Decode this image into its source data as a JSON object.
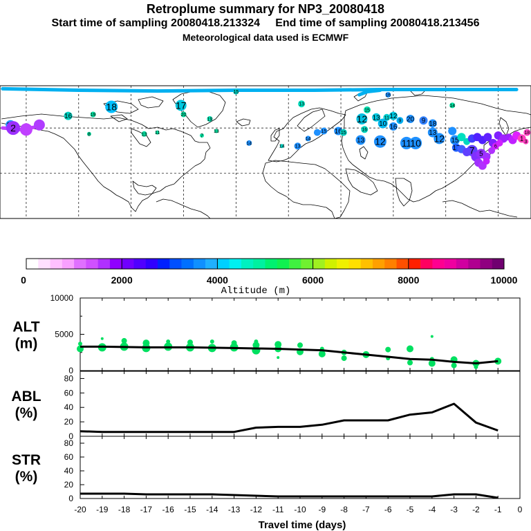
{
  "header": {
    "title": "Retroplume summary for NP3_20080418",
    "sampling_line": "Start time of sampling 20080418.213324     End time of sampling 20080418.213456",
    "met_line": "Meteorological data used is ECMWF"
  },
  "map": {
    "markers": [
      {
        "lon": -172,
        "lat": 62,
        "label": "20",
        "color": "#1e90ff",
        "r": 7
      },
      {
        "lon": -170,
        "lat": 60,
        "label": "2",
        "color": "#9b30ff",
        "r": 10
      },
      {
        "lon": -160,
        "lat": 59,
        "label": "",
        "color": "#c040ff",
        "r": 9
      },
      {
        "lon": -150,
        "lat": 62,
        "label": "",
        "color": "#b03cff",
        "r": 8
      },
      {
        "lon": -128,
        "lat": 68,
        "label": "16",
        "color": "#00d0c0",
        "r": 6
      },
      {
        "lon": -95,
        "lat": 74,
        "label": "18",
        "color": "#00bfff",
        "r": 9
      },
      {
        "lon": -109,
        "lat": 69,
        "label": "19",
        "color": "#00e0a0",
        "r": 4
      },
      {
        "lon": -42,
        "lat": 75,
        "label": "17",
        "color": "#00c8e0",
        "r": 8
      },
      {
        "lon": -40,
        "lat": 69,
        "label": "20",
        "color": "#00e0a0",
        "r": 4
      },
      {
        "lon": -20,
        "lat": 66,
        "label": "19",
        "color": "#00e0b0",
        "r": 4
      },
      {
        "lon": -70,
        "lat": 56,
        "label": "13",
        "color": "#00e0a0",
        "r": 4
      },
      {
        "lon": -112,
        "lat": 56,
        "label": "8",
        "color": "#00e0a0",
        "r": 3
      },
      {
        "lon": 50,
        "lat": 76,
        "label": "13",
        "color": "#00e0c0",
        "r": 5
      },
      {
        "lon": 100,
        "lat": 72,
        "label": "15",
        "color": "#00e0b0",
        "r": 5
      },
      {
        "lon": 96,
        "lat": 66,
        "label": "12",
        "color": "#00c0e0",
        "r": 8
      },
      {
        "lon": 107,
        "lat": 67,
        "label": "13",
        "color": "#00c8e0",
        "r": 6
      },
      {
        "lon": 115,
        "lat": 67,
        "label": "11",
        "color": "#00d0d0",
        "r": 5
      },
      {
        "lon": 120,
        "lat": 68,
        "label": "12",
        "color": "#00c8e0",
        "r": 6
      },
      {
        "lon": 125,
        "lat": 65,
        "label": "9",
        "color": "#00aef0",
        "r": 5
      },
      {
        "lon": 133,
        "lat": 66,
        "label": "20",
        "color": "#1e90ff",
        "r": 6
      },
      {
        "lon": 143,
        "lat": 65,
        "label": "9",
        "color": "#3080ff",
        "r": 6
      },
      {
        "lon": 150,
        "lat": 63,
        "label": "18",
        "color": "#1e90ff",
        "r": 6
      },
      {
        "lon": 112,
        "lat": 63,
        "label": "10",
        "color": "#00b8f0",
        "r": 7
      },
      {
        "lon": 120,
        "lat": 61,
        "label": "16",
        "color": "#1e90ff",
        "r": 6
      },
      {
        "lon": 98,
        "lat": 59,
        "label": "16",
        "color": "#00d8c0",
        "r": 5
      },
      {
        "lon": 67,
        "lat": 58,
        "label": "15",
        "color": "#1e90ff",
        "r": 5
      },
      {
        "lon": 78,
        "lat": 58,
        "label": "16",
        "color": "#1e90ff",
        "r": 6
      },
      {
        "lon": 82,
        "lat": 57,
        "label": "15",
        "color": "#00d0c0",
        "r": 5
      },
      {
        "lon": 62,
        "lat": 57,
        "label": "",
        "color": "#1e90ff",
        "r": 5
      },
      {
        "lon": 95,
        "lat": 52,
        "label": "13",
        "color": "#1e90ff",
        "r": 7
      },
      {
        "lon": 110,
        "lat": 51,
        "label": "12",
        "color": "#1e90ff",
        "r": 9
      },
      {
        "lon": 130,
        "lat": 50,
        "label": "11",
        "color": "#1e90ff",
        "r": 9
      },
      {
        "lon": 137,
        "lat": 50,
        "label": "10",
        "color": "#1e90ff",
        "r": 9
      },
      {
        "lon": 150,
        "lat": 57,
        "label": "13",
        "color": "#1e90ff",
        "r": 7
      },
      {
        "lon": 155,
        "lat": 53,
        "label": "12",
        "color": "#1e90ff",
        "r": 8
      },
      {
        "lon": 165,
        "lat": 58,
        "label": "",
        "color": "#1e90ff",
        "r": 6
      },
      {
        "lon": 167,
        "lat": 52,
        "label": "15",
        "color": "#1e90ff",
        "r": 7
      },
      {
        "lon": 168,
        "lat": 47,
        "label": "17",
        "color": "#2060ff",
        "r": 6
      },
      {
        "lon": 172,
        "lat": 54,
        "label": "",
        "color": "#00e0c0",
        "r": 6
      },
      {
        "lon": 176,
        "lat": 51,
        "label": "",
        "color": "#00d8c0",
        "r": 5
      },
      {
        "lon": 180,
        "lat": 53,
        "label": "",
        "color": "#4040ff",
        "r": 6
      },
      {
        "lon": 184,
        "lat": 54,
        "label": "",
        "color": "#5020ff",
        "r": 6
      },
      {
        "lon": 188,
        "lat": 52,
        "label": "",
        "color": "#5020ff",
        "r": 6
      },
      {
        "lon": 192,
        "lat": 54,
        "label": "",
        "color": "#6020ff",
        "r": 6
      },
      {
        "lon": 196,
        "lat": 50,
        "label": "",
        "color": "#8020ff",
        "r": 6
      },
      {
        "lon": 200,
        "lat": 55,
        "label": "",
        "color": "#8020ff",
        "r": 6
      },
      {
        "lon": 204,
        "lat": 53,
        "label": "",
        "color": "#a020ff",
        "r": 6
      },
      {
        "lon": 208,
        "lat": 54,
        "label": "",
        "color": "#a020ff",
        "r": 5
      },
      {
        "lon": 211,
        "lat": 52,
        "label": "",
        "color": "#c020ff",
        "r": 6
      },
      {
        "lon": 214,
        "lat": 55,
        "label": "",
        "color": "#e020ff",
        "r": 6
      },
      {
        "lon": 218,
        "lat": 53,
        "label": "1",
        "color": "#ff40c0",
        "r": 6
      },
      {
        "lon": 221,
        "lat": 51,
        "label": "3",
        "color": "#ff40c0",
        "r": 4
      },
      {
        "lon": 222,
        "lat": 57,
        "label": "18",
        "color": "#ff40c0",
        "r": 5
      },
      {
        "lon": 172,
        "lat": 46,
        "label": "",
        "color": "#4060ff",
        "r": 6
      },
      {
        "lon": 176,
        "lat": 44,
        "label": "",
        "color": "#6040ff",
        "r": 6
      },
      {
        "lon": 180,
        "lat": 45,
        "label": "7",
        "color": "#6040ff",
        "r": 8
      },
      {
        "lon": 183,
        "lat": 41,
        "label": "",
        "color": "#8030ff",
        "r": 7
      },
      {
        "lon": 187,
        "lat": 43,
        "label": "5",
        "color": "#9030ff",
        "r": 7
      },
      {
        "lon": 191,
        "lat": 41,
        "label": "",
        "color": "#a030ff",
        "r": 6
      },
      {
        "lon": 195,
        "lat": 45,
        "label": "",
        "color": "#b030ff",
        "r": 5
      },
      {
        "lon": 198,
        "lat": 48,
        "label": "6",
        "color": "#d020ff",
        "r": 5
      },
      {
        "lon": 201,
        "lat": 50,
        "label": "",
        "color": "#d020ff",
        "r": 5
      },
      {
        "lon": 185,
        "lat": 37,
        "label": "",
        "color": "#a030ff",
        "r": 6
      },
      {
        "lon": 188,
        "lat": 35,
        "label": "",
        "color": "#b030ff",
        "r": 6
      },
      {
        "lon": 191,
        "lat": 38,
        "label": "",
        "color": "#c020ff",
        "r": 5
      },
      {
        "lon": 0,
        "lat": 84,
        "label": "15",
        "color": "#00d0c0",
        "r": 4
      },
      {
        "lon": 116,
        "lat": 82,
        "label": "16",
        "color": "#1e90ff",
        "r": 4
      },
      {
        "lon": 165,
        "lat": 75,
        "label": "14",
        "color": "#00e0a0",
        "r": 4
      },
      {
        "lon": -60,
        "lat": 57,
        "label": "11",
        "color": "#00e0a0",
        "r": 3
      },
      {
        "lon": -26,
        "lat": 55,
        "label": "7",
        "color": "#00e0a0",
        "r": 3
      },
      {
        "lon": 47,
        "lat": 48,
        "label": "13",
        "color": "#1e90ff",
        "r": 5
      },
      {
        "lon": 55,
        "lat": 53,
        "label": "14",
        "color": "#1e90ff",
        "r": 4
      },
      {
        "lon": 35,
        "lat": 48,
        "label": "14",
        "color": "#00d0c0",
        "r": 3
      },
      {
        "lon": 10,
        "lat": 50,
        "label": "14",
        "color": "#1e90ff",
        "r": 4
      },
      {
        "lon": -15,
        "lat": 58,
        "label": "13",
        "color": "#00e0a0",
        "r": 3
      }
    ],
    "plumes": [
      {
        "color": "#00b0f0",
        "points": [
          [
            -178,
            86
          ],
          [
            -120,
            85
          ],
          [
            -60,
            84.5
          ],
          [
            0,
            85
          ],
          [
            60,
            85
          ],
          [
            110,
            85.5
          ],
          [
            180,
            85.5
          ],
          [
            214,
            85.5
          ]
        ]
      },
      {
        "color": "#00b0f0",
        "points": [
          [
            94,
            82
          ],
          [
            100,
            84
          ],
          [
            110,
            85
          ]
        ]
      },
      {
        "color": "#c040ff",
        "points": [
          [
            -178,
            60
          ],
          [
            -165,
            59
          ],
          [
            -150,
            61
          ]
        ]
      }
    ],
    "lon_ticks": [
      -160,
      -120,
      -80,
      -40,
      0,
      40,
      80,
      120,
      160,
      200
    ],
    "lat_ticks": [
      60,
      30,
      0
    ]
  },
  "colorbar": {
    "colors": [
      "#ffffff",
      "#ffe0ff",
      "#ffc0ff",
      "#f8a0ff",
      "#e070ff",
      "#d050ff",
      "#b030ff",
      "#9000ff",
      "#7000ff",
      "#5000ff",
      "#3000ff",
      "#0020ff",
      "#0050ff",
      "#0070ff",
      "#1090ff",
      "#20b0ff",
      "#00d0ff",
      "#00f0f0",
      "#00f0c0",
      "#00f0a0",
      "#00f070",
      "#10f050",
      "#40f040",
      "#70f030",
      "#a0f020",
      "#d0f000",
      "#f0f000",
      "#ffe000",
      "#ffc000",
      "#ffa000",
      "#ff8000",
      "#ff5000",
      "#ff2000",
      "#ff0060",
      "#ff0090",
      "#f000a0",
      "#d000a0",
      "#b00090",
      "#900080",
      "#700070"
    ],
    "tick_labels": [
      "0",
      "2000",
      "4000",
      "6000",
      "8000",
      "10000"
    ],
    "xlabel": "Altitude (m)"
  },
  "chart_data": [
    {
      "type": "line",
      "title": "ALT (m)",
      "panel_label_1": "ALT",
      "panel_label_2": "(m)",
      "xlabel": "Travel time (days)",
      "ylabel": "Altitude (m)",
      "ylim": [
        0,
        10000
      ],
      "xlim": [
        -20,
        0
      ],
      "y_ticks": [
        "10000",
        "5000",
        "0"
      ],
      "x": [
        -20,
        -19,
        -18,
        -17,
        -16,
        -15,
        -14,
        -13,
        -12,
        -11,
        -10,
        -9,
        -8,
        -7,
        -6,
        -5,
        -4,
        -3,
        -2,
        -1
      ],
      "series": [
        {
          "name": "median altitude",
          "values": [
            3300,
            3300,
            3250,
            3200,
            3200,
            3200,
            3150,
            3100,
            3050,
            3000,
            2900,
            2800,
            2500,
            2200,
            1900,
            1600,
            1500,
            1200,
            1000,
            1300
          ]
        }
      ],
      "scatter": {
        "name": "cluster centroids",
        "points": [
          [
            -20,
            3000,
            5
          ],
          [
            -20,
            3700,
            3
          ],
          [
            -19,
            3200,
            6
          ],
          [
            -19,
            4400,
            2
          ],
          [
            -18,
            3300,
            6
          ],
          [
            -18,
            4100,
            4
          ],
          [
            -17,
            3100,
            6
          ],
          [
            -17,
            3800,
            5
          ],
          [
            -16,
            3300,
            6
          ],
          [
            -16,
            4000,
            3
          ],
          [
            -15,
            3200,
            6
          ],
          [
            -15,
            3900,
            4
          ],
          [
            -14,
            3100,
            6
          ],
          [
            -14,
            4000,
            3
          ],
          [
            -13,
            3200,
            6
          ],
          [
            -13,
            3800,
            4
          ],
          [
            -12,
            2800,
            6
          ],
          [
            -12,
            3500,
            5
          ],
          [
            -12,
            4000,
            3
          ],
          [
            -11,
            3000,
            5
          ],
          [
            -11,
            3600,
            5
          ],
          [
            -11,
            1800,
            2
          ],
          [
            -10,
            2600,
            5
          ],
          [
            -10,
            3500,
            4
          ],
          [
            -9,
            2300,
            5
          ],
          [
            -9,
            3000,
            3
          ],
          [
            -8,
            2500,
            4
          ],
          [
            -8,
            1700,
            4
          ],
          [
            -7,
            2200,
            5
          ],
          [
            -6,
            2900,
            4
          ],
          [
            -6,
            1700,
            3
          ],
          [
            -5,
            3000,
            5
          ],
          [
            -5,
            1100,
            4
          ],
          [
            -4,
            1000,
            5
          ],
          [
            -4,
            4700,
            2
          ],
          [
            -4,
            1600,
            3
          ],
          [
            -3,
            1500,
            5
          ],
          [
            -3,
            700,
            4
          ],
          [
            -2,
            1000,
            5
          ],
          [
            -2,
            500,
            3
          ],
          [
            -1,
            1300,
            5
          ]
        ]
      }
    },
    {
      "type": "line",
      "title": "ABL (%)",
      "panel_label_1": "ABL",
      "panel_label_2": "(%)",
      "ylabel": "ABL (%)",
      "ylim": [
        0,
        90
      ],
      "xlim": [
        -20,
        0
      ],
      "y_ticks": [
        "80",
        "60",
        "40",
        "20",
        "0"
      ],
      "x": [
        -20,
        -19,
        -18,
        -17,
        -16,
        -15,
        -14,
        -13,
        -12,
        -11,
        -10,
        -9,
        -8,
        -7,
        -6,
        -5,
        -4,
        -3,
        -2,
        -1
      ],
      "series": [
        {
          "name": "ABL fraction",
          "values": [
            7,
            6,
            6,
            6,
            6,
            6,
            6,
            6,
            12,
            13,
            13,
            16,
            22,
            22,
            22,
            30,
            33,
            45,
            19,
            8
          ]
        }
      ]
    },
    {
      "type": "line",
      "title": "STR (%)",
      "panel_label_1": "STR",
      "panel_label_2": "(%)",
      "ylabel": "STR (%)",
      "ylim": [
        0,
        90
      ],
      "xlim": [
        -20,
        0
      ],
      "y_ticks": [
        "80",
        "60",
        "40",
        "20",
        "0"
      ],
      "x": [
        -20,
        -19,
        -18,
        -17,
        -16,
        -15,
        -14,
        -13,
        -12,
        -11,
        -10,
        -9,
        -8,
        -7,
        -6,
        -5,
        -4,
        -3,
        -2,
        -1
      ],
      "series": [
        {
          "name": "stratospheric fraction",
          "values": [
            7,
            7,
            7,
            6,
            6,
            6,
            6,
            5,
            4,
            3,
            3,
            3,
            3,
            3,
            3,
            3,
            3,
            6,
            6,
            1
          ]
        }
      ],
      "x_ticks": [
        "-20",
        "-19",
        "-18",
        "-17",
        "-16",
        "-15",
        "-14",
        "-13",
        "-12",
        "-11",
        "-10",
        "-9",
        "-8",
        "-7",
        "-6",
        "-5",
        "-4",
        "-3",
        "-2",
        "-1",
        "0"
      ]
    }
  ]
}
